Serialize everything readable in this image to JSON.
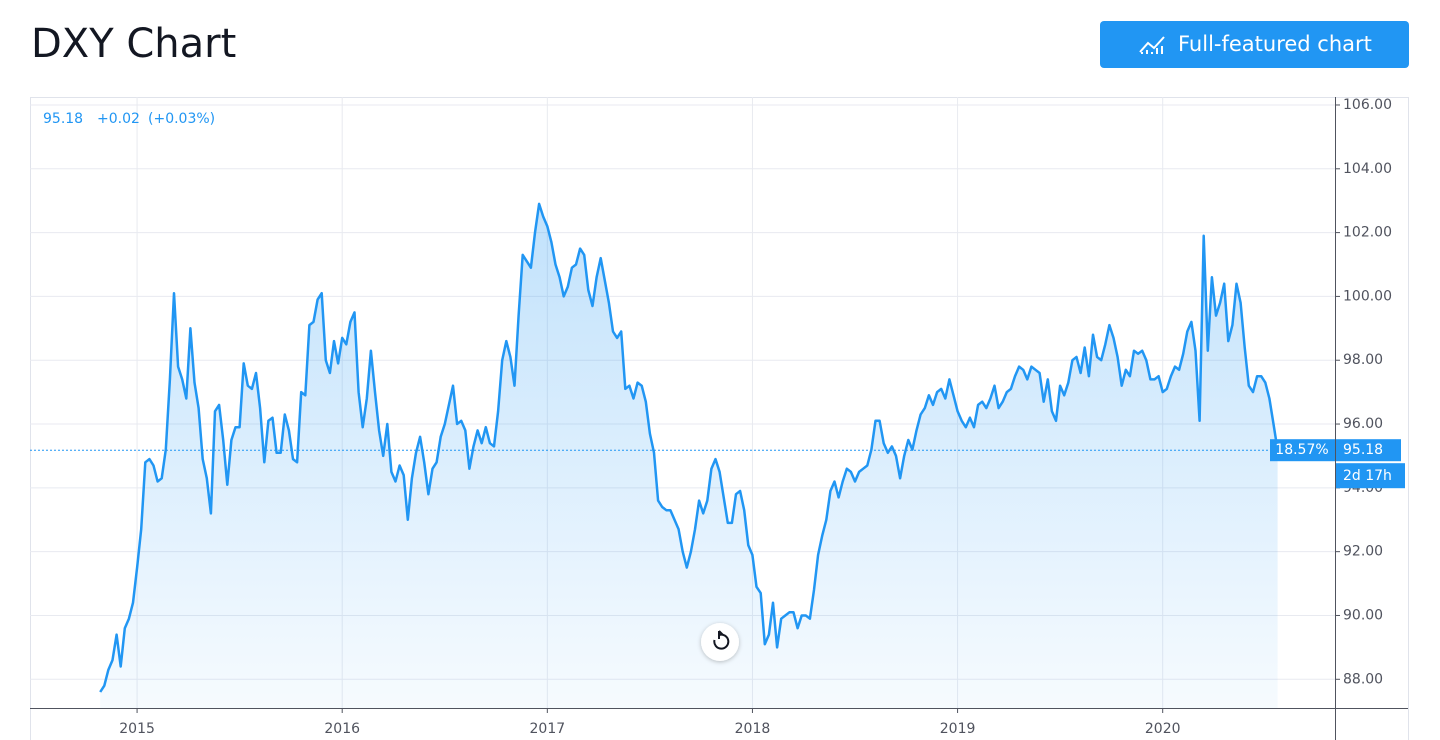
{
  "toolbar_button": "Full-featured chart",
  "chart_data": {
    "type": "line",
    "title": "DXY Chart",
    "color": "#2196f3",
    "last_price": 95.18,
    "change": "+0.02",
    "change_pct": "(+0.03%)",
    "percent_label": "18.57%",
    "countdown": "2d 17h",
    "xlim": [
      2014.478,
      2020.84
    ],
    "xticks": [
      2015,
      2016,
      2017,
      2018,
      2019,
      2020
    ],
    "ylim": [
      87.1,
      106.25
    ],
    "yticks": [
      {
        "value": 88,
        "label": "88.00"
      },
      {
        "value": 90,
        "label": "90.00"
      },
      {
        "value": 92,
        "label": "92.00"
      },
      {
        "value": 94,
        "label": "94.00"
      },
      {
        "value": 96,
        "label": "96.00"
      },
      {
        "value": 98,
        "label": "98.00"
      },
      {
        "value": 100,
        "label": "100.00"
      },
      {
        "value": 102,
        "label": "102.00"
      },
      {
        "value": 104,
        "label": "104.00"
      },
      {
        "value": 106,
        "label": "106.00"
      }
    ],
    "grid": true,
    "x": [
      2014.82,
      2014.84,
      2014.86,
      2014.88,
      2014.9,
      2014.92,
      2014.94,
      2014.96,
      2014.98,
      2015,
      2015.02,
      2015.04,
      2015.06,
      2015.08,
      2015.1,
      2015.12,
      2015.14,
      2015.16,
      2015.18,
      2015.2,
      2015.22,
      2015.24,
      2015.26,
      2015.28,
      2015.3,
      2015.32,
      2015.34,
      2015.36,
      2015.38,
      2015.4,
      2015.42,
      2015.44,
      2015.46,
      2015.48,
      2015.5,
      2015.52,
      2015.54,
      2015.56,
      2015.58,
      2015.6,
      2015.62,
      2015.64,
      2015.66,
      2015.68,
      2015.7,
      2015.72,
      2015.74,
      2015.76,
      2015.78,
      2015.8,
      2015.82,
      2015.84,
      2015.86,
      2015.88,
      2015.9,
      2015.92,
      2015.94,
      2015.96,
      2015.98,
      2016,
      2016.02,
      2016.04,
      2016.06,
      2016.08,
      2016.1,
      2016.12,
      2016.14,
      2016.16,
      2016.18,
      2016.2,
      2016.22,
      2016.24,
      2016.26,
      2016.28,
      2016.3,
      2016.32,
      2016.34,
      2016.36,
      2016.38,
      2016.4,
      2016.42,
      2016.44,
      2016.46,
      2016.48,
      2016.5,
      2016.52,
      2016.54,
      2016.56,
      2016.58,
      2016.6,
      2016.62,
      2016.64,
      2016.66,
      2016.68,
      2016.7,
      2016.72,
      2016.74,
      2016.76,
      2016.78,
      2016.8,
      2016.82,
      2016.84,
      2016.86,
      2016.88,
      2016.9,
      2016.92,
      2016.94,
      2016.96,
      2016.98,
      2017,
      2017.02,
      2017.04,
      2017.06,
      2017.08,
      2017.1,
      2017.12,
      2017.14,
      2017.16,
      2017.18,
      2017.2,
      2017.22,
      2017.24,
      2017.26,
      2017.28,
      2017.3,
      2017.32,
      2017.34,
      2017.36,
      2017.38,
      2017.4,
      2017.42,
      2017.44,
      2017.46,
      2017.48,
      2017.5,
      2017.52,
      2017.54,
      2017.56,
      2017.58,
      2017.6,
      2017.62,
      2017.64,
      2017.66,
      2017.68,
      2017.7,
      2017.72,
      2017.74,
      2017.76,
      2017.78,
      2017.8,
      2017.82,
      2017.84,
      2017.86,
      2017.88,
      2017.9,
      2017.92,
      2017.94,
      2017.96,
      2017.98,
      2018,
      2018.02,
      2018.04,
      2018.06,
      2018.08,
      2018.1,
      2018.12,
      2018.14,
      2018.16,
      2018.18,
      2018.2,
      2018.22,
      2018.24,
      2018.26,
      2018.28,
      2018.3,
      2018.32,
      2018.34,
      2018.36,
      2018.38,
      2018.4,
      2018.42,
      2018.44,
      2018.46,
      2018.48,
      2018.5,
      2018.52,
      2018.54,
      2018.56,
      2018.58,
      2018.6,
      2018.62,
      2018.64,
      2018.66,
      2018.68,
      2018.7,
      2018.72,
      2018.74,
      2018.76,
      2018.78,
      2018.8,
      2018.82,
      2018.84,
      2018.86,
      2018.88,
      2018.9,
      2018.92,
      2018.94,
      2018.96,
      2018.98,
      2019,
      2019.02,
      2019.04,
      2019.06,
      2019.08,
      2019.1,
      2019.12,
      2019.14,
      2019.16,
      2019.18,
      2019.2,
      2019.22,
      2019.24,
      2019.26,
      2019.28,
      2019.3,
      2019.32,
      2019.34,
      2019.36,
      2019.38,
      2019.4,
      2019.42,
      2019.44,
      2019.46,
      2019.48,
      2019.5,
      2019.52,
      2019.54,
      2019.56,
      2019.58,
      2019.6,
      2019.62,
      2019.64,
      2019.66,
      2019.68,
      2019.7,
      2019.72,
      2019.74,
      2019.76,
      2019.78,
      2019.8,
      2019.82,
      2019.84,
      2019.86,
      2019.88,
      2019.9,
      2019.92,
      2019.94,
      2019.96,
      2019.98,
      2020,
      2020.02,
      2020.04,
      2020.06,
      2020.08,
      2020.1,
      2020.12,
      2020.14,
      2020.16,
      2020.18,
      2020.2,
      2020.22,
      2020.24,
      2020.26,
      2020.28,
      2020.3,
      2020.32,
      2020.34,
      2020.36,
      2020.38,
      2020.4,
      2020.42,
      2020.44,
      2020.46,
      2020.48,
      2020.5,
      2020.52,
      2020.54,
      2020.56
    ],
    "values": [
      87.6,
      87.8,
      88.3,
      88.6,
      89.4,
      88.4,
      89.6,
      89.9,
      90.4,
      91.5,
      92.7,
      94.8,
      94.9,
      94.7,
      94.2,
      94.3,
      95.2,
      97.4,
      100.1,
      97.8,
      97.4,
      96.8,
      99.0,
      97.3,
      96.5,
      94.9,
      94.3,
      93.2,
      96.4,
      96.6,
      95.5,
      94.1,
      95.5,
      95.9,
      95.9,
      97.9,
      97.2,
      97.1,
      97.6,
      96.5,
      94.8,
      96.1,
      96.2,
      95.1,
      95.1,
      96.3,
      95.8,
      94.9,
      94.8,
      97.0,
      96.9,
      99.1,
      99.2,
      99.9,
      100.1,
      98.0,
      97.6,
      98.6,
      97.9,
      98.7,
      98.5,
      99.2,
      99.5,
      97.0,
      95.9,
      96.8,
      98.3,
      97.0,
      95.8,
      95.0,
      96.0,
      94.5,
      94.2,
      94.7,
      94.4,
      93.0,
      94.3,
      95.1,
      95.6,
      94.8,
      93.8,
      94.6,
      94.8,
      95.6,
      96.0,
      96.6,
      97.2,
      96.0,
      96.1,
      95.8,
      94.6,
      95.3,
      95.8,
      95.4,
      95.9,
      95.4,
      95.3,
      96.4,
      98.0,
      98.6,
      98.1,
      97.2,
      99.4,
      101.3,
      101.1,
      100.9,
      102.0,
      102.9,
      102.5,
      102.2,
      101.7,
      101.0,
      100.6,
      100.0,
      100.3,
      100.9,
      101.0,
      101.5,
      101.3,
      100.2,
      99.7,
      100.6,
      101.2,
      100.5,
      99.8,
      98.9,
      98.7,
      98.9,
      97.1,
      97.2,
      96.8,
      97.3,
      97.2,
      96.7,
      95.7,
      95.1,
      93.6,
      93.4,
      93.3,
      93.3,
      93.0,
      92.7,
      92.0,
      91.5,
      92.0,
      92.7,
      93.6,
      93.2,
      93.6,
      94.6,
      94.9,
      94.5,
      93.7,
      92.9,
      92.9,
      93.8,
      93.9,
      93.3,
      92.2,
      91.9,
      90.9,
      90.7,
      89.1,
      89.4,
      90.4,
      89.0,
      89.9,
      90.0,
      90.1,
      90.1,
      89.6,
      90.0,
      90.0,
      89.9,
      90.8,
      91.9,
      92.5,
      93.0,
      93.9,
      94.2,
      93.7,
      94.2,
      94.6,
      94.5,
      94.2,
      94.5,
      94.6,
      94.7,
      95.2,
      96.1,
      96.1,
      95.4,
      95.1,
      95.3,
      95.0,
      94.3,
      95.0,
      95.5,
      95.2,
      95.8,
      96.3,
      96.5,
      96.9,
      96.6,
      97.0,
      97.1,
      96.8,
      97.4,
      96.9,
      96.4,
      96.1,
      95.9,
      96.2,
      95.9,
      96.6,
      96.7,
      96.5,
      96.8,
      97.2,
      96.5,
      96.7,
      97.0,
      97.1,
      97.5,
      97.8,
      97.7,
      97.4,
      97.8,
      97.7,
      97.6,
      96.7,
      97.4,
      96.4,
      96.1,
      97.2,
      96.9,
      97.3,
      98.0,
      98.1,
      97.6,
      98.4,
      97.5,
      98.8,
      98.1,
      98.0,
      98.5,
      99.1,
      98.7,
      98.1,
      97.2,
      97.7,
      97.5,
      98.3,
      98.2,
      98.3,
      98.0,
      97.4,
      97.4,
      97.5,
      97.0,
      97.1,
      97.5,
      97.8,
      97.7,
      98.2,
      98.9,
      99.2,
      98.3,
      96.1,
      101.9,
      98.3,
      100.6,
      99.4,
      99.8,
      100.4,
      98.6,
      99.1,
      100.4,
      99.8,
      98.4,
      97.2,
      97.0,
      97.5,
      97.5,
      97.3,
      96.8,
      96.0,
      95.18
    ]
  }
}
